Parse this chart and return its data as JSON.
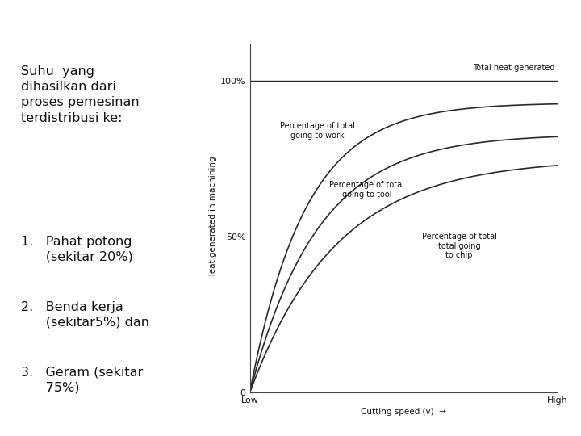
{
  "title_text": "Suhu  yang\ndihasilkan dari\nproses pemesinan\nterdistribusi ke:",
  "list_items": [
    "1.   Pahat potong\n      (sekitar 20%)",
    "2.   Benda kerja\n      (sekitar5%) dan",
    "3.   Geram (sekitar\n      75%)"
  ],
  "ylabel": "Heat generated in machining",
  "xlabel": "Cutting speed (v)  →",
  "yticks_labels": [
    "0",
    "50%",
    "100%"
  ],
  "yticks_pos": [
    0,
    50,
    100
  ],
  "xticks_labels": [
    "Low",
    "High"
  ],
  "xticks_pos": [
    0,
    100
  ],
  "total_heat_label": "Total heat generated",
  "curve_work_label": "Percentage of total\ngoing to work",
  "curve_tool_label": "Percentage of total\ngoing to tool",
  "curve_chip_label": "Percentage of total\ntotal going\nto chip",
  "bg_color": "#ffffff",
  "line_color": "#2a2a2a",
  "text_color": "#111111",
  "title_fontsize": 11.5,
  "list_fontsize": 11.5,
  "chart_annotation_fontsize": 7,
  "axis_label_fontsize": 7.5,
  "tick_fontsize": 8
}
